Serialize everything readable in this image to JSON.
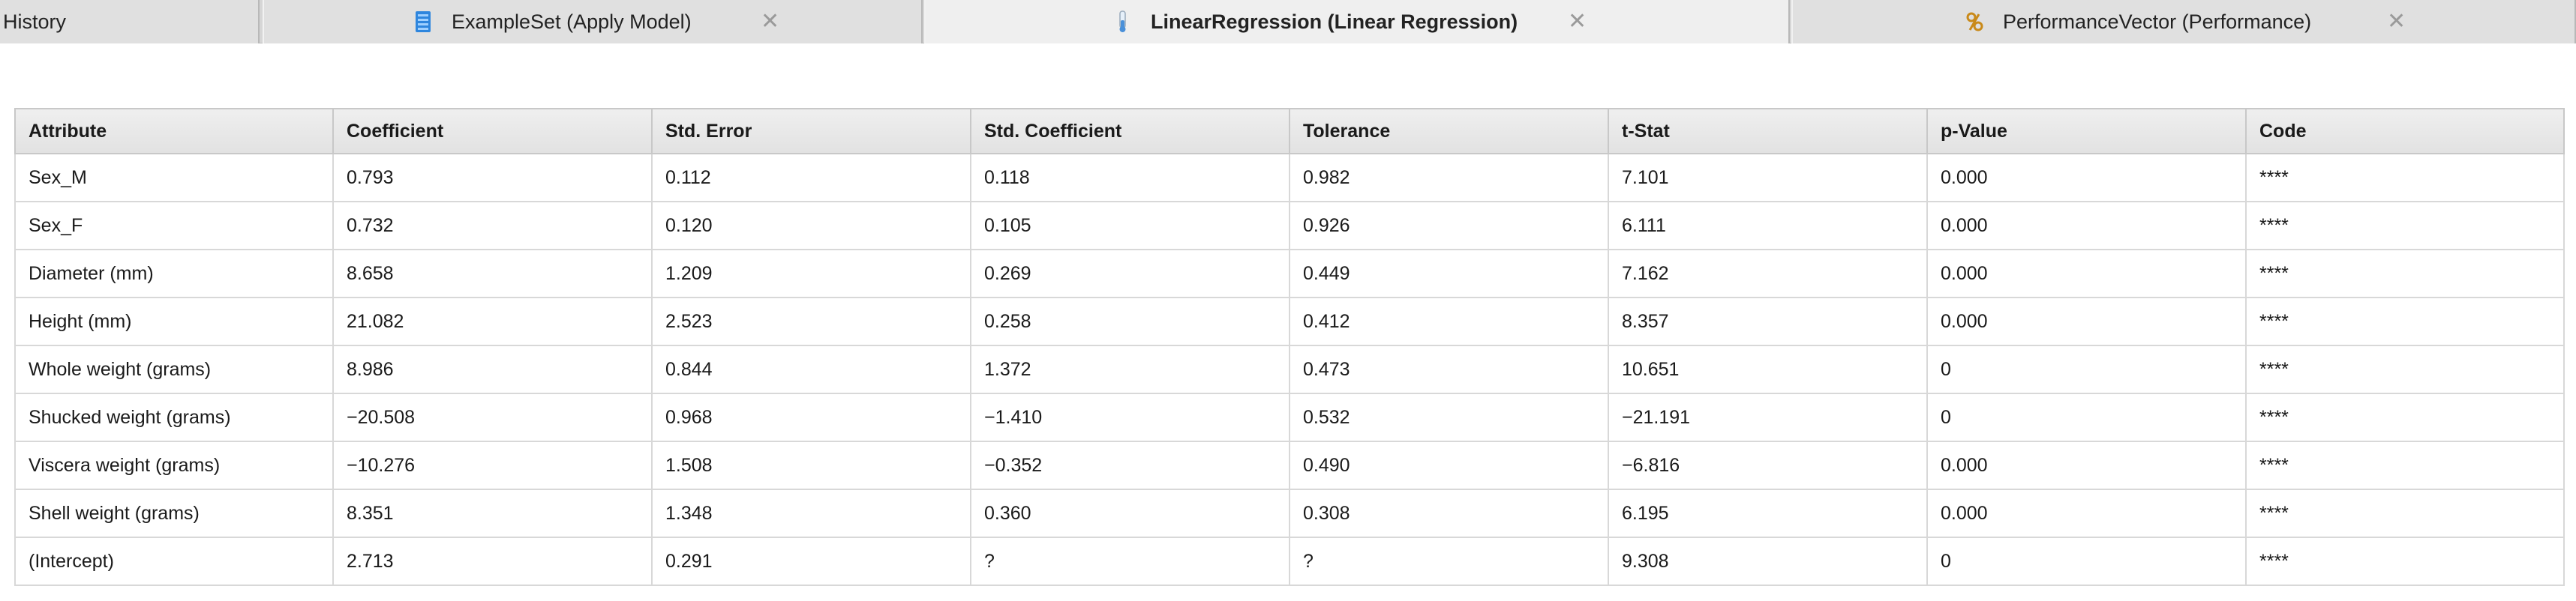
{
  "tabs": [
    {
      "label": "History"
    },
    {
      "label": "ExampleSet (Apply Model)"
    },
    {
      "label": "LinearRegression (Linear Regression)"
    },
    {
      "label": "PerformanceVector (Performance)"
    }
  ],
  "icons": {
    "exampleset": "table-icon",
    "linreg": "flask-icon",
    "performance": "performance-icon",
    "close": "close-icon",
    "close_glyph": "✕"
  },
  "table": {
    "headers": [
      "Attribute",
      "Coefficient",
      "Std. Error",
      "Std. Coefficient",
      "Tolerance",
      "t-Stat",
      "p-Value",
      "Code"
    ],
    "rows": [
      [
        "Sex_M",
        "0.793",
        "0.112",
        "0.118",
        "0.982",
        "7.101",
        "0.000",
        "****"
      ],
      [
        "Sex_F",
        "0.732",
        "0.120",
        "0.105",
        "0.926",
        "6.111",
        "0.000",
        "****"
      ],
      [
        "Diameter (mm)",
        "8.658",
        "1.209",
        "0.269",
        "0.449",
        "7.162",
        "0.000",
        "****"
      ],
      [
        "Height (mm)",
        "21.082",
        "2.523",
        "0.258",
        "0.412",
        "8.357",
        "0.000",
        "****"
      ],
      [
        "Whole weight (grams)",
        "8.986",
        "0.844",
        "1.372",
        "0.473",
        "10.651",
        "0",
        "****"
      ],
      [
        "Shucked weight (grams)",
        "−20.508",
        "0.968",
        "−1.410",
        "0.532",
        "−21.191",
        "0",
        "****"
      ],
      [
        "Viscera weight (grams)",
        "−10.276",
        "1.508",
        "−0.352",
        "0.490",
        "−6.816",
        "0.000",
        "****"
      ],
      [
        "Shell weight (grams)",
        "8.351",
        "1.348",
        "0.360",
        "0.308",
        "6.195",
        "0.000",
        "****"
      ],
      [
        "(Intercept)",
        "2.713",
        "0.291",
        "?",
        "?",
        "9.308",
        "0",
        "****"
      ]
    ]
  }
}
